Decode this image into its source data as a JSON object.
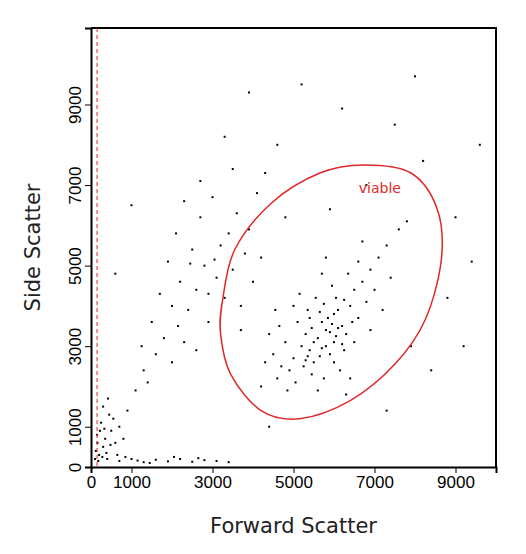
{
  "chart_data": {
    "type": "scatter",
    "x_label": "Forward Scatter",
    "y_label": "Side Scatter",
    "xlim": [
      0,
      10000
    ],
    "ylim": [
      0,
      10900
    ],
    "xticks": [
      0,
      1000,
      3000,
      5000,
      7000,
      9000
    ],
    "yticks": [
      0,
      1000,
      3000,
      5000,
      7000,
      9000
    ],
    "color": "#000000",
    "marker": "square",
    "grid": false,
    "threshold_x": 150,
    "gates": [
      {
        "label": "viable",
        "color": "#e0282a",
        "x": [
          3250,
          3550,
          4450,
          5650,
          6750,
          7900,
          8550,
          8650,
          8250,
          7500,
          6400,
          5150,
          4200,
          3450,
          3200
        ],
        "y": [
          4150,
          5400,
          6550,
          7300,
          7500,
          7300,
          6400,
          5150,
          3650,
          2550,
          1650,
          1200,
          1400,
          2300,
          3300
        ]
      }
    ],
    "x": [
      5600,
      5800,
      6000,
      5400,
      5700,
      6200,
      5900,
      5300,
      6100,
      5500,
      6400,
      5000,
      5200,
      6300,
      5800,
      5650,
      6050,
      4900,
      5100,
      6500,
      6700,
      4700,
      5450,
      6000,
      5750,
      6250,
      6600,
      4800,
      5350,
      5950,
      6900,
      7100,
      4600,
      4500,
      5050,
      6150,
      6800,
      5550,
      6350,
      7300,
      4400,
      5250,
      5850,
      6450,
      5650,
      6050,
      5450,
      5950,
      6200,
      5350,
      7000,
      7400,
      4300,
      4650,
      5150,
      5700,
      6600,
      7600,
      4200,
      5600,
      6400,
      6900,
      7200,
      5000,
      4850,
      5800,
      6700,
      7800,
      6300,
      4550,
      5500,
      5700,
      5900,
      6100,
      5300,
      6000,
      5400,
      6250,
      5750,
      6500,
      2800,
      2500,
      3100,
      2200,
      3400,
      2700,
      1900,
      3000,
      3600,
      2400,
      1700,
      3300,
      2100,
      3800,
      2600,
      4100,
      1500,
      2900,
      3500,
      2300,
      4000,
      1800,
      3200,
      2000,
      2700,
      3700,
      4300,
      1600,
      3900,
      2450,
      3050,
      2150,
      4600,
      3300,
      1300,
      2600,
      1100,
      1400,
      2000,
      3700,
      2900,
      3500,
      2300,
      4200,
      1250,
      200,
      300,
      150,
      400,
      250,
      350,
      500,
      180,
      450,
      600,
      120,
      300,
      550,
      700,
      220,
      380,
      650,
      160,
      480,
      280,
      800,
      900,
      420,
      100,
      330,
      700,
      1000,
      1300,
      1600,
      1900,
      2200,
      2500,
      2800,
      3100,
      850,
      1450,
      2050,
      2650,
      3400,
      1150,
      7500,
      8200,
      6200,
      9000,
      8800,
      9400,
      5200,
      7900,
      8400,
      4800,
      6800,
      9600,
      3900,
      1000,
      600,
      8000,
      9200,
      7300,
      5900,
      4400
    ],
    "values": [
      3200,
      3400,
      3100,
      2900,
      3600,
      3500,
      2800,
      3300,
      3900,
      2600,
      4000,
      2700,
      3000,
      3300,
      3000,
      3850,
      4200,
      2400,
      3600,
      4400,
      4600,
      2500,
      2300,
      2600,
      2200,
      2900,
      3700,
      3100,
      3900,
      4500,
      4900,
      5200,
      2200,
      2800,
      2100,
      2400,
      4100,
      4200,
      4800,
      5500,
      3300,
      2500,
      3700,
      3600,
      2750,
      3250,
      3450,
      3550,
      3050,
      2750,
      4400,
      4700,
      2600,
      3500,
      4300,
      4800,
      5100,
      5900,
      2000,
      1900,
      2200,
      3400,
      3900,
      4000,
      1900,
      5200,
      5600,
      6100,
      1800,
      3900,
      3100,
      2950,
      3350,
      3450,
      2650,
      3800,
      3700,
      4150,
      4050,
      3100,
      5000,
      5400,
      4700,
      4600,
      5800,
      6200,
      5100,
      6700,
      6300,
      3900,
      4300,
      4200,
      5800,
      5300,
      4400,
      6800,
      3600,
      3600,
      7400,
      6600,
      4600,
      3200,
      5500,
      4000,
      7100,
      4000,
      7300,
      2800,
      5900,
      5050,
      5150,
      3500,
      8000,
      8200,
      2400,
      2900,
      1900,
      2100,
      2600,
      3400,
      4300,
      4900,
      3100,
      5200,
      3000,
      300,
      500,
      800,
      200,
      1100,
      700,
      900,
      150,
      1300,
      600,
      400,
      1500,
      1200,
      1000,
      900,
      350,
      300,
      600,
      550,
      250,
      700,
      1400,
      1700,
      200,
      950,
      150,
      200,
      120,
      180,
      140,
      200,
      130,
      170,
      150,
      250,
      100,
      250,
      220,
      120,
      160,
      8500,
      7600,
      8900,
      6200,
      4200,
      5100,
      9500,
      3000,
      2400,
      6200,
      7000,
      8000,
      9300,
      6500,
      4800,
      9700,
      3000,
      1400,
      6400,
      1000
    ]
  }
}
